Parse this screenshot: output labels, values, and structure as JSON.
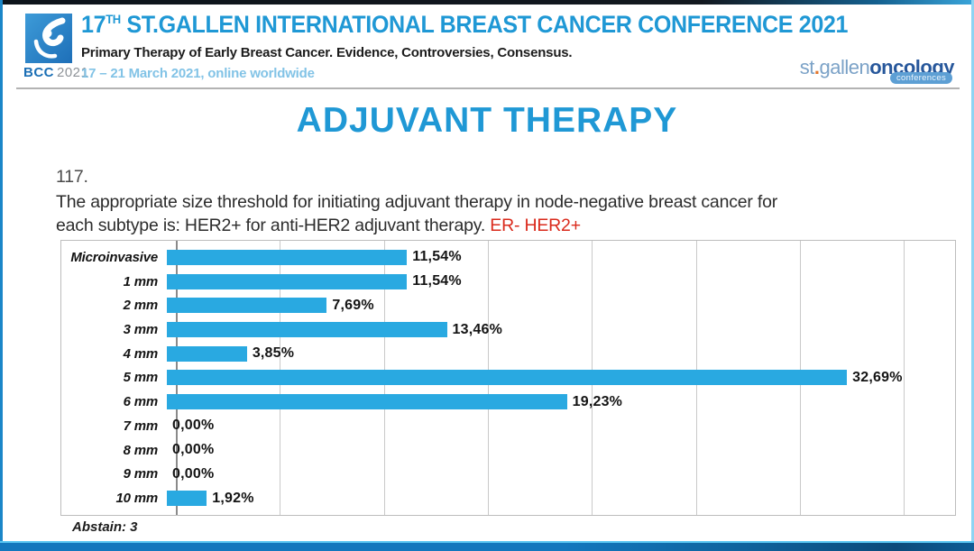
{
  "header": {
    "logo": {
      "acronym": "BCC",
      "year": "2021"
    },
    "title_num": "17",
    "title_sup": "TH",
    "title_rest": " ST.GALLEN INTERNATIONAL BREAST CANCER CONFERENCE 2021",
    "subtitle": "Primary Therapy of Early Breast Cancer. Evidence, Controversies, Consensus.",
    "dates": "17 – 21 March 2021, online worldwide",
    "right_logo": {
      "part1": "st",
      "dot": ".",
      "part2": "gallen",
      "part3": "oncology",
      "part4": "conferences"
    }
  },
  "slide": {
    "title": "ADJUVANT THERAPY",
    "question_number": "117.",
    "question_line1": "The appropriate size threshold for initiating adjuvant therapy in node-negative breast cancer for",
    "question_line2": "each subtype is: HER2+ for anti-HER2 adjuvant therapy. ",
    "question_highlight": "ER- HER2+",
    "abstain": "Abstain: 3"
  },
  "chart_data": {
    "type": "bar",
    "orientation": "horizontal",
    "title": "",
    "categories": [
      "Microinvasive",
      "1 mm",
      "2 mm",
      "3 mm",
      "4 mm",
      "5 mm",
      "6 mm",
      "7 mm",
      "8 mm",
      "9 mm",
      "10 mm"
    ],
    "values": [
      11.54,
      11.54,
      7.69,
      13.46,
      3.85,
      32.69,
      19.23,
      0.0,
      0.0,
      0.0,
      1.92
    ],
    "value_labels": [
      "11,54%",
      "11,54%",
      "7,69%",
      "13,46%",
      "3,85%",
      "32,69%",
      "19,23%",
      "0,00%",
      "0,00%",
      "0,00%",
      "1,92%"
    ],
    "xlim": [
      0,
      37.45
    ],
    "gridline_interval": 5,
    "grid": true,
    "legend": "none",
    "bar_color": "#29a9e1",
    "abstain_count": 3
  },
  "colors": {
    "accent_blue": "#1f98d5",
    "bar_blue": "#29a9e1",
    "highlight_red": "#da2a1c",
    "date_blue": "#82c3e6",
    "logo_dark_blue": "#27579b",
    "logo_light_blue": "#7ba2c7",
    "logo_orange_dot": "#e2762d",
    "bottom_bar_blue": "#1377bd"
  }
}
